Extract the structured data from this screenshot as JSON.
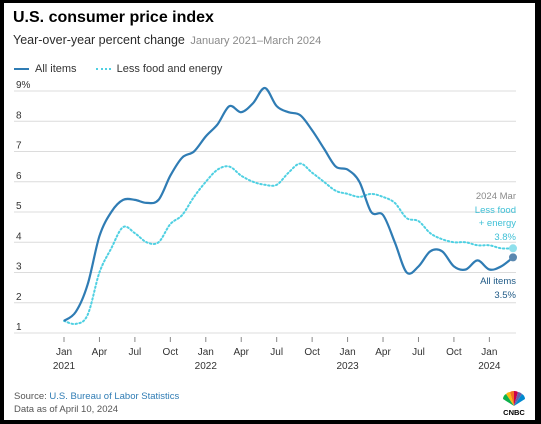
{
  "header": {
    "title": "U.S. consumer price index",
    "subtitle": "Year-over-year percent change",
    "date_range": "January 2021–March 2024"
  },
  "legend": {
    "all_items": "All items",
    "core": "Less food and energy"
  },
  "annotations": {
    "date": "2024 Mar",
    "core_line1": "Less food",
    "core_line2": "+ energy",
    "core_value": "3.8%",
    "all_label": "All items",
    "all_value": "3.5%"
  },
  "footer": {
    "source_prefix": "Source:",
    "source_name": "U.S. Bureau of Labor Statistics",
    "data_as_of": "Data as of April 10, 2024"
  },
  "logo": {
    "text": "CNBC",
    "icon": "peacock-icon"
  },
  "colors": {
    "all_items": "#2f7cb4",
    "core": "#4fd0e2"
  },
  "chart_data": {
    "type": "line",
    "title": "U.S. consumer price index",
    "subtitle": "Year-over-year percent change",
    "ylim": [
      1,
      9
    ],
    "y_ticks": [
      "1",
      "2",
      "3",
      "4",
      "5",
      "6",
      "7",
      "8",
      "9%"
    ],
    "y_tick_values": [
      1,
      2,
      3,
      4,
      5,
      6,
      7,
      8,
      9
    ],
    "x_ticks": [
      "Jan",
      "Apr",
      "Jul",
      "Oct",
      "Jan",
      "Apr",
      "Jul",
      "Oct",
      "Jan",
      "Apr",
      "Jul",
      "Oct",
      "Jan"
    ],
    "x_tick_indices": [
      0,
      3,
      6,
      9,
      12,
      15,
      18,
      21,
      24,
      27,
      30,
      33,
      36
    ],
    "year_labels": [
      "2021",
      "2022",
      "2023",
      "2024"
    ],
    "year_label_indices": [
      0,
      12,
      24,
      36
    ],
    "grid": "horizontal",
    "legend": "top-left",
    "x": [
      "2021-01",
      "2021-02",
      "2021-03",
      "2021-04",
      "2021-05",
      "2021-06",
      "2021-07",
      "2021-08",
      "2021-09",
      "2021-10",
      "2021-11",
      "2021-12",
      "2022-01",
      "2022-02",
      "2022-03",
      "2022-04",
      "2022-05",
      "2022-06",
      "2022-07",
      "2022-08",
      "2022-09",
      "2022-10",
      "2022-11",
      "2022-12",
      "2023-01",
      "2023-02",
      "2023-03",
      "2023-04",
      "2023-05",
      "2023-06",
      "2023-07",
      "2023-08",
      "2023-09",
      "2023-10",
      "2023-11",
      "2023-12",
      "2024-01",
      "2024-02",
      "2024-03"
    ],
    "series": [
      {
        "name": "All items",
        "values": [
          1.4,
          1.7,
          2.6,
          4.2,
          5.0,
          5.4,
          5.4,
          5.3,
          5.4,
          6.2,
          6.8,
          7.0,
          7.5,
          7.9,
          8.5,
          8.3,
          8.6,
          9.1,
          8.5,
          8.3,
          8.2,
          7.7,
          7.1,
          6.5,
          6.4,
          6.0,
          5.0,
          4.9,
          4.0,
          3.0,
          3.2,
          3.7,
          3.7,
          3.2,
          3.1,
          3.4,
          3.1,
          3.2,
          3.5
        ]
      },
      {
        "name": "Less food and energy",
        "values": [
          1.4,
          1.3,
          1.6,
          3.0,
          3.8,
          4.5,
          4.3,
          4.0,
          4.0,
          4.6,
          4.9,
          5.5,
          6.0,
          6.4,
          6.5,
          6.2,
          6.0,
          5.9,
          5.9,
          6.3,
          6.6,
          6.3,
          6.0,
          5.7,
          5.6,
          5.5,
          5.6,
          5.5,
          5.3,
          4.8,
          4.7,
          4.3,
          4.1,
          4.0,
          4.0,
          3.9,
          3.9,
          3.8,
          3.8
        ]
      }
    ]
  }
}
